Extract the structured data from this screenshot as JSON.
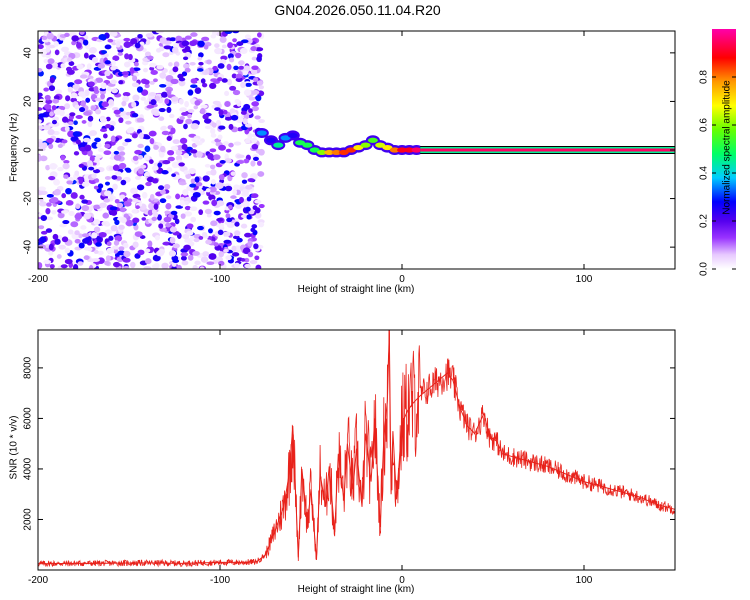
{
  "figure_title": "GN04.2026.050.11.04.R20",
  "chart_data": [
    {
      "type": "heatmap",
      "title": "GN04.2026.050.11.04.R20",
      "xlabel": "Height of straight line (km)",
      "ylabel": "Frequency (Hz)",
      "xlim": [
        -200,
        150
      ],
      "ylim": [
        -49,
        49
      ],
      "xticks": [
        -200,
        -100,
        0,
        100
      ],
      "yticks": [
        -40,
        -20,
        0,
        20,
        40
      ],
      "colorbar": {
        "label": "Normalized spectral amplitude",
        "range": [
          0,
          1
        ],
        "ticks": [
          0.0,
          0.2,
          0.4,
          0.6,
          0.8
        ],
        "colors": [
          "#ffffff",
          "#e7c8ff",
          "#9933ff",
          "#5500ee",
          "#0000ff",
          "#00ccff",
          "#00ff66",
          "#66ff00",
          "#ffff00",
          "#ff9900",
          "#ff0000",
          "#ff00aa"
        ]
      },
      "regions": [
        {
          "name": "noise",
          "x": [
            -200,
            -77
          ],
          "amplitude": [
            0.02,
            0.3
          ]
        },
        {
          "name": "signal_segments",
          "points": [
            [
              -77,
              7,
              0.35
            ],
            [
              -72,
              4,
              0.25
            ],
            [
              -68,
              2,
              0.45
            ],
            [
              -64,
              5,
              0.35
            ],
            [
              -60,
              6,
              0.25
            ],
            [
              -56,
              3,
              0.5
            ],
            [
              -52,
              2,
              0.5
            ],
            [
              -48,
              0,
              0.5
            ],
            [
              -44,
              -1,
              0.6
            ],
            [
              -40,
              -1,
              0.75
            ],
            [
              -36,
              -1,
              0.8
            ],
            [
              -32,
              -1,
              0.85
            ],
            [
              -28,
              0,
              0.85
            ],
            [
              -24,
              1,
              0.7
            ],
            [
              -20,
              2,
              0.6
            ],
            [
              -16,
              4,
              0.55
            ],
            [
              -12,
              2,
              0.65
            ],
            [
              -8,
              1,
              0.7
            ],
            [
              -4,
              0,
              0.8
            ],
            [
              0,
              0,
              0.9
            ],
            [
              4,
              0,
              0.9
            ],
            [
              8,
              0,
              0.95
            ]
          ]
        },
        {
          "name": "steady_line",
          "x": [
            10,
            150
          ],
          "frequency": 0,
          "amplitude": 0.95
        }
      ]
    },
    {
      "type": "line",
      "xlabel": "Height of straight line (km)",
      "ylabel": "SNR (10 * v/v)",
      "xlim": [
        -200,
        150
      ],
      "ylim": [
        0,
        9500
      ],
      "xticks": [
        -200,
        -100,
        0,
        100
      ],
      "yticks": [
        2000,
        4000,
        6000,
        8000
      ],
      "color": "#e8221b",
      "series": [
        {
          "name": "SNR",
          "x": [
            -200,
            -180,
            -160,
            -140,
            -120,
            -100,
            -90,
            -80,
            -75,
            -70,
            -65,
            -62,
            -60,
            -57,
            -55,
            -52,
            -50,
            -47,
            -45,
            -42,
            -40,
            -37,
            -35,
            -32,
            -30,
            -27,
            -25,
            -22,
            -20,
            -17,
            -15,
            -12,
            -10,
            -8,
            -7,
            -6,
            -5,
            -3,
            0,
            3,
            6,
            10,
            15,
            20,
            25,
            28,
            32,
            36,
            40,
            45,
            48,
            52,
            55,
            60,
            70,
            80,
            90,
            100,
            110,
            120,
            130,
            140,
            150
          ],
          "y": [
            250,
            260,
            270,
            280,
            260,
            300,
            300,
            320,
            600,
            1500,
            2500,
            3800,
            5700,
            500,
            4000,
            1800,
            3200,
            400,
            3800,
            2500,
            4100,
            1500,
            4600,
            2800,
            5000,
            3200,
            4800,
            2500,
            5400,
            3500,
            6000,
            1700,
            5200,
            6700,
            9400,
            3000,
            5500,
            2800,
            5800,
            6300,
            6600,
            6900,
            7200,
            7500,
            7800,
            7500,
            6400,
            5700,
            5400,
            6200,
            5300,
            5100,
            4600,
            4500,
            4300,
            4100,
            3800,
            3500,
            3300,
            3100,
            2900,
            2600,
            2400
          ]
        }
      ]
    }
  ]
}
